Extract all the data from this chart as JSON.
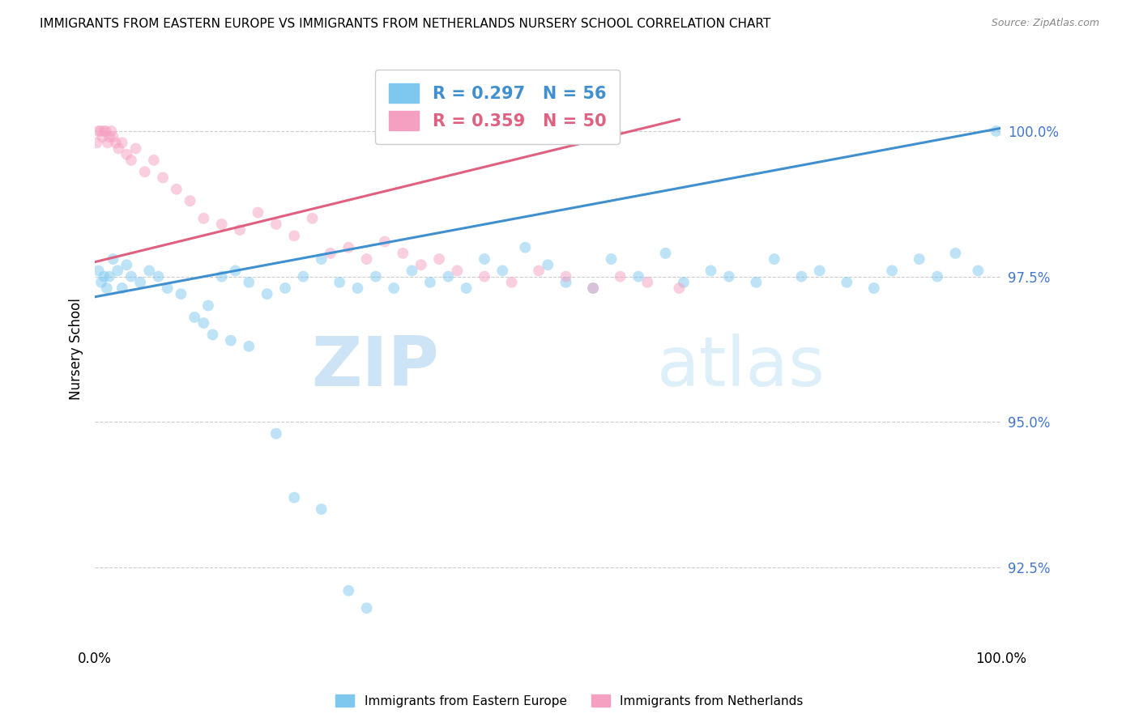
{
  "title": "IMMIGRANTS FROM EASTERN EUROPE VS IMMIGRANTS FROM NETHERLANDS NURSERY SCHOOL CORRELATION CHART",
  "source": "Source: ZipAtlas.com",
  "ylabel": "Nursery School",
  "ytick_values": [
    100.0,
    97.5,
    95.0,
    92.5
  ],
  "ylim": [
    91.2,
    101.3
  ],
  "xlim": [
    0.0,
    100.0
  ],
  "blue_color": "#7ec8f0",
  "pink_color": "#f5a0c0",
  "blue_line_color": "#4090d0",
  "pink_line_color": "#e06080",
  "legend_label_blue": "Immigrants from Eastern Europe",
  "legend_label_pink": "Immigrants from Netherlands",
  "blue_legend_text": "R = 0.297   N = 56",
  "pink_legend_text": "R = 0.359   N = 50",
  "blue_scatter_x": [
    0.4,
    0.7,
    1.0,
    1.3,
    1.6,
    2.0,
    2.5,
    3.0,
    3.5,
    4.0,
    5.0,
    6.0,
    7.0,
    8.0,
    9.5,
    11.0,
    12.5,
    14.0,
    15.5,
    17.0,
    19.0,
    21.0,
    23.0,
    25.0,
    27.0,
    29.0,
    31.0,
    33.0,
    35.0,
    37.0,
    39.0,
    41.0,
    43.0,
    45.0,
    47.5,
    50.0,
    52.0,
    55.0,
    57.0,
    60.0,
    63.0,
    65.0,
    68.0,
    70.0,
    73.0,
    75.0,
    78.0,
    80.0,
    83.0,
    86.0,
    88.0,
    91.0,
    93.0,
    95.0,
    97.5,
    99.5
  ],
  "blue_scatter_y": [
    97.6,
    97.4,
    97.5,
    97.3,
    97.5,
    97.8,
    97.6,
    97.3,
    97.7,
    97.5,
    97.4,
    97.6,
    97.5,
    97.3,
    97.2,
    96.8,
    97.0,
    97.5,
    97.6,
    97.4,
    97.2,
    97.3,
    97.5,
    97.8,
    97.4,
    97.3,
    97.5,
    97.3,
    97.6,
    97.4,
    97.5,
    97.3,
    97.8,
    97.6,
    98.0,
    97.7,
    97.4,
    97.3,
    97.8,
    97.5,
    97.9,
    97.4,
    97.6,
    97.5,
    97.4,
    97.8,
    97.5,
    97.6,
    97.4,
    97.3,
    97.6,
    97.8,
    97.5,
    97.9,
    97.6,
    100.0
  ],
  "blue_outlier_x": [
    12.0,
    13.0,
    15.0,
    17.0,
    20.0,
    22.0,
    25.0,
    28.0,
    30.0
  ],
  "blue_outlier_y": [
    96.7,
    96.5,
    96.4,
    96.3,
    94.8,
    93.7,
    93.5,
    92.1,
    91.8
  ],
  "pink_scatter_x": [
    0.2,
    0.4,
    0.6,
    0.8,
    1.0,
    1.2,
    1.4,
    1.6,
    1.8,
    2.0,
    2.3,
    2.6,
    3.0,
    3.5,
    4.0,
    4.5,
    5.5,
    6.5,
    7.5,
    9.0,
    10.5,
    12.0,
    14.0,
    16.0,
    18.0,
    20.0,
    22.0,
    24.0,
    26.0,
    28.0,
    30.0,
    32.0,
    34.0,
    36.0,
    38.0,
    40.0,
    43.0,
    46.0,
    49.0,
    52.0,
    55.0,
    58.0,
    61.0,
    64.5
  ],
  "pink_scatter_y": [
    99.8,
    100.0,
    100.0,
    99.9,
    100.0,
    100.0,
    99.8,
    99.9,
    100.0,
    99.9,
    99.8,
    99.7,
    99.8,
    99.6,
    99.5,
    99.7,
    99.3,
    99.5,
    99.2,
    99.0,
    98.8,
    98.5,
    98.4,
    98.3,
    98.6,
    98.4,
    98.2,
    98.5,
    97.9,
    98.0,
    97.8,
    98.1,
    97.9,
    97.7,
    97.8,
    97.6,
    97.5,
    97.4,
    97.6,
    97.5,
    97.3,
    97.5,
    97.4,
    97.3
  ],
  "blue_line_x0": 0.0,
  "blue_line_x1": 100.0,
  "blue_line_y0": 97.15,
  "blue_line_y1": 100.05,
  "pink_line_x0": 0.0,
  "pink_line_x1": 64.5,
  "pink_line_y0": 97.75,
  "pink_line_y1": 100.2,
  "watermark_zip": "ZIP",
  "watermark_atlas": "atlas",
  "marker_size": 100,
  "alpha": 0.5
}
